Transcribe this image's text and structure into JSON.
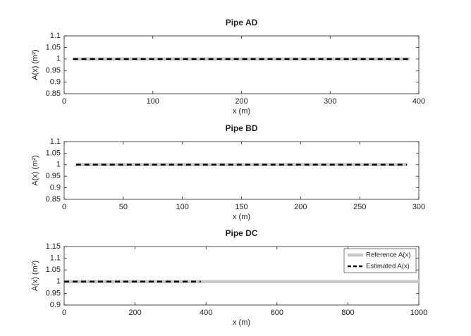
{
  "chart_data": [
    {
      "type": "line",
      "title": "Pipe AD",
      "xlabel": "x (m)",
      "ylabel": "A(x) (m²)",
      "xlim": [
        0,
        400
      ],
      "xticks": [
        0,
        100,
        200,
        300,
        400
      ],
      "ylim": [
        0.85,
        1.1
      ],
      "yticks": [
        0.85,
        0.9,
        0.95,
        1,
        1.05,
        1.1
      ],
      "series": [
        {
          "color": "#c8c8c8",
          "style": "solid",
          "x": [
            10,
            390
          ],
          "values": [
            1,
            1
          ]
        },
        {
          "color": "#000000",
          "style": "dashed",
          "x": [
            10,
            390
          ],
          "values": [
            1,
            1
          ]
        }
      ]
    },
    {
      "type": "line",
      "title": "Pipe BD",
      "xlabel": "x (m)",
      "ylabel": "A(x) (m²)",
      "xlim": [
        0,
        300
      ],
      "xticks": [
        0,
        50,
        100,
        150,
        200,
        250,
        300
      ],
      "ylim": [
        0.85,
        1.1
      ],
      "yticks": [
        0.85,
        0.9,
        0.95,
        1,
        1.05,
        1.1
      ],
      "series": [
        {
          "color": "#c8c8c8",
          "style": "solid",
          "x": [
            10,
            290
          ],
          "values": [
            1,
            1
          ]
        },
        {
          "color": "#000000",
          "style": "dashed",
          "x": [
            10,
            290
          ],
          "values": [
            1,
            1
          ]
        }
      ]
    },
    {
      "type": "line",
      "title": "Pipe DC",
      "xlabel": "x (m)",
      "ylabel": "A(x) (m²)",
      "xlim": [
        0,
        1000
      ],
      "xticks": [
        0,
        200,
        400,
        600,
        800,
        1000
      ],
      "ylim": [
        0.9,
        1.15
      ],
      "yticks": [
        0.9,
        0.95,
        1,
        1.05,
        1.1,
        1.15
      ],
      "legend": "northeast",
      "series": [
        {
          "name": "Reference A(x)",
          "color": "#c8c8c8",
          "style": "solid",
          "x": [
            0,
            1000
          ],
          "values": [
            1,
            1
          ]
        },
        {
          "name": "Estimated A(x)",
          "color": "#000000",
          "style": "dashed",
          "x": [
            0,
            385
          ],
          "values": [
            1,
            1
          ]
        }
      ]
    }
  ]
}
